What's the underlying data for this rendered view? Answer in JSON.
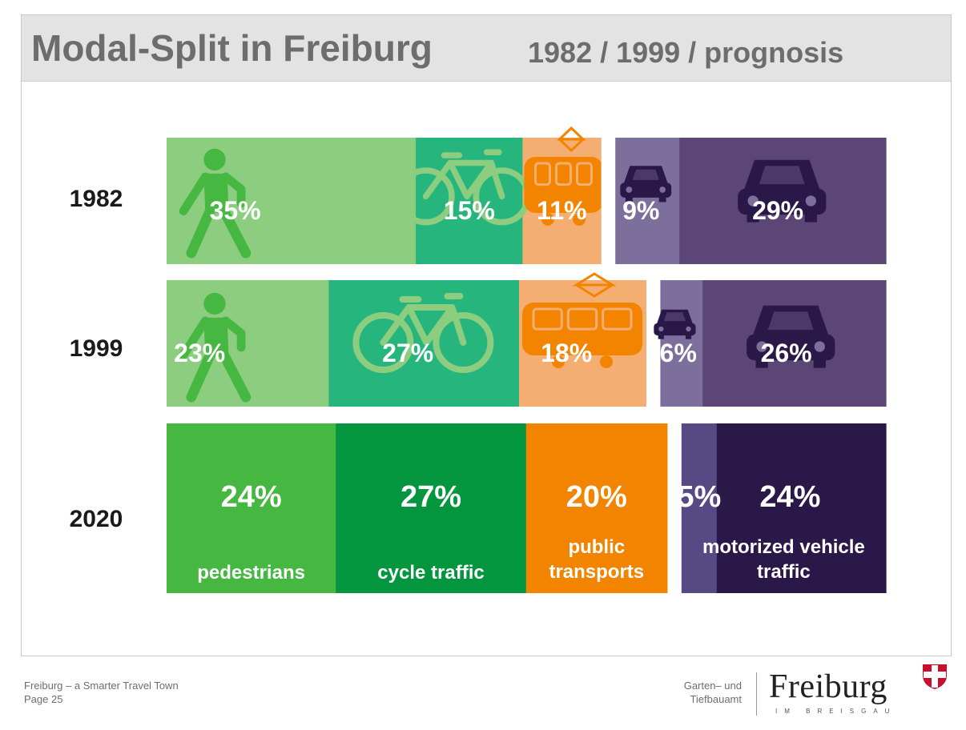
{
  "title": "Modal-Split in Freiburg",
  "subtitle": "1982 / 1999 / prognosis",
  "chart_data": {
    "type": "bar",
    "orientation": "horizontal-stacked",
    "categories": [
      "1982",
      "1999",
      "2020"
    ],
    "series": [
      {
        "name": "pedestrians",
        "values": [
          35,
          23,
          24
        ],
        "colors": [
          "#8ccd80",
          "#8ccd80",
          "#46b740"
        ]
      },
      {
        "name": "cycle traffic",
        "values": [
          15,
          27,
          27
        ],
        "colors": [
          "#27b57e",
          "#27b57e",
          "#04953f"
        ]
      },
      {
        "name": "public transports",
        "values": [
          11,
          18,
          20
        ],
        "colors": [
          "#f5ae72",
          "#f5ae72",
          "#f28400"
        ]
      },
      {
        "name": "",
        "values": [
          9,
          6,
          5
        ],
        "colors": [
          "#7c6f9b",
          "#7c6f9b",
          "#564a84"
        ]
      },
      {
        "name": "",
        "values": [
          29,
          26,
          24
        ],
        "colors": [
          "#5b4675",
          "#5b4675",
          "#2a1848"
        ]
      }
    ],
    "data_labels": [
      [
        "35%",
        "15%",
        "11%",
        "9%",
        "29%"
      ],
      [
        "23%",
        "27%",
        "18%",
        "6%",
        "26%"
      ],
      [
        "24%",
        "27%",
        "20%",
        "5%",
        "24%"
      ]
    ],
    "category_labels_2020": [
      [
        "pedestrians"
      ],
      [
        "cycle traffic"
      ],
      [
        "public",
        "transports"
      ],
      [
        "motorized vehicle",
        "traffic"
      ]
    ],
    "icon_colors": {
      "walker": "#46b740",
      "bike": "#8ccd80",
      "tram": "#f28400",
      "car": "#2a1848"
    },
    "icons": [
      "walker-icon",
      "bicycle-icon",
      "tram-icon",
      "car-icon"
    ]
  },
  "footer": {
    "line1": "Freiburg – a Smarter Travel Town",
    "line2": "Page 25",
    "dept_line1": "Garten– und",
    "dept_line2": "Tiefbauamt"
  },
  "logo": {
    "word": "Freiburg",
    "sub": "IM BREISGAU",
    "crest_colors": [
      "#c8102e",
      "#ffffff"
    ]
  }
}
